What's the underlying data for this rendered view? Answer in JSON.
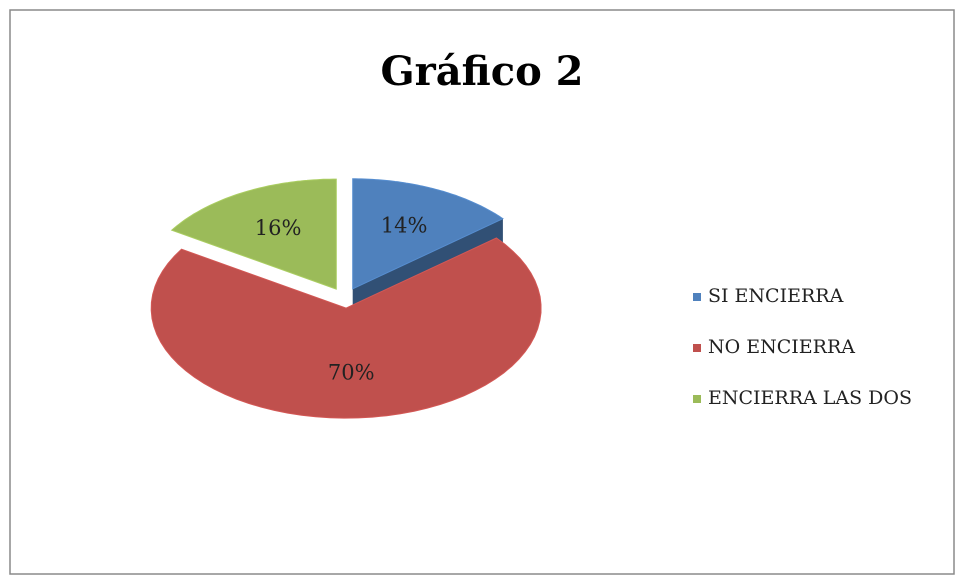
{
  "chart_data": {
    "type": "pie",
    "title": "Gráfico 2",
    "categories": [
      "SI ENCIERRA",
      "NO ENCIERRA",
      "ENCIERRA LAS DOS"
    ],
    "values": [
      14,
      70,
      16
    ],
    "value_labels": [
      "14%",
      "70%",
      "16%"
    ],
    "colors": [
      "#4f81bd",
      "#c0504d",
      "#9bbb59"
    ],
    "legend": "right"
  }
}
